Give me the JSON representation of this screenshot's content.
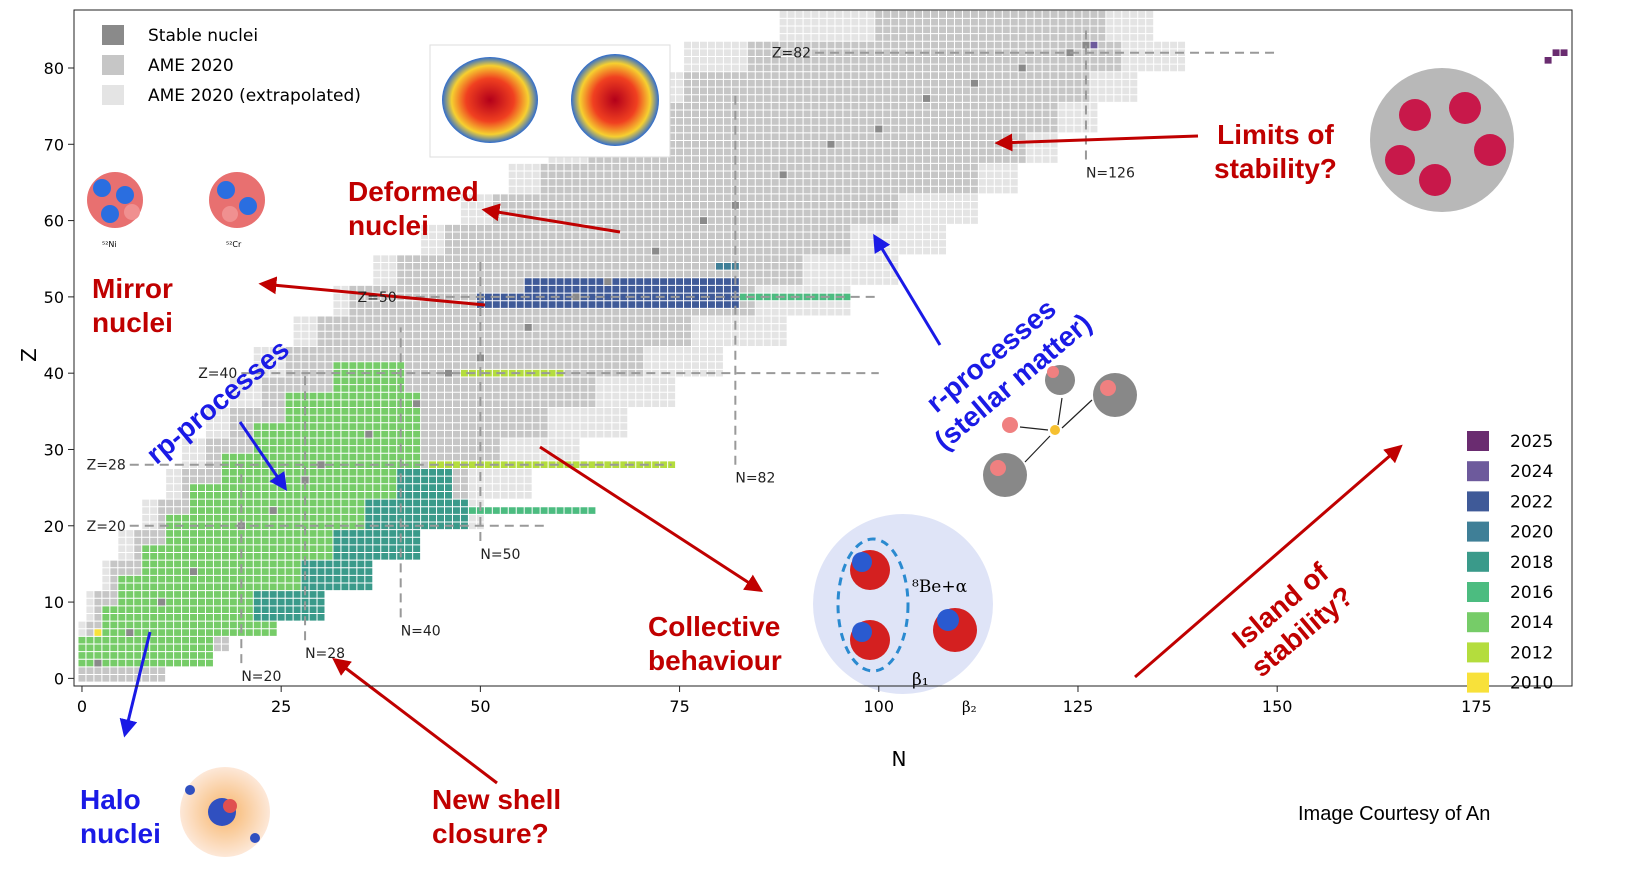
{
  "chart_data": {
    "type": "nuclide-chart",
    "xlabel": "N",
    "ylabel": "Z",
    "xlim": [
      -1,
      187
    ],
    "ylim": [
      -1,
      87.6
    ],
    "xticks": [
      0,
      25,
      50,
      75,
      100,
      125,
      150,
      175
    ],
    "yticks": [
      0,
      10,
      20,
      30,
      40,
      50,
      60,
      70,
      80
    ],
    "series": [
      {
        "name": "Stable nuclei",
        "color": "#8a8a8a",
        "legend": "upper left",
        "x": [
          2,
          6,
          10,
          14,
          20,
          24,
          28,
          30,
          36,
          42,
          46,
          50,
          56,
          62,
          66,
          72,
          78,
          82,
          88,
          94,
          100,
          106,
          112,
          118,
          124,
          126
        ],
        "y": [
          2,
          6,
          10,
          14,
          20,
          22,
          26,
          28,
          32,
          36,
          40,
          42,
          46,
          50,
          52,
          56,
          60,
          62,
          66,
          70,
          72,
          76,
          78,
          80,
          82,
          83
        ]
      },
      {
        "name": "AME 2020",
        "color": "#c6c6c6",
        "legend": "upper left",
        "z": [
          0,
          4,
          8,
          12,
          16,
          20,
          24,
          28,
          32,
          36,
          40,
          44,
          48,
          52,
          56,
          60,
          64,
          68,
          72,
          76,
          80,
          84
        ],
        "n_min": [
          0,
          1,
          2,
          4,
          7,
          10,
          13,
          16,
          19,
          23,
          26,
          30,
          34,
          40,
          46,
          52,
          58,
          64,
          70,
          76,
          84,
          100
        ],
        "n_max": [
          10,
          18,
          26,
          32,
          38,
          44,
          48,
          52,
          58,
          64,
          70,
          76,
          84,
          90,
          96,
          102,
          112,
          118,
          122,
          126,
          130,
          128
        ]
      },
      {
        "name": "AME 2020 (extrapolated)",
        "color": "#e4e4e4",
        "legend": "upper left",
        "z": [
          0,
          4,
          8,
          12,
          16,
          20,
          24,
          28,
          32,
          36,
          40,
          44,
          48,
          52,
          56,
          60,
          64,
          68,
          72,
          76,
          80,
          84
        ],
        "n_min": [
          0,
          0,
          1,
          3,
          5,
          8,
          11,
          13,
          16,
          19,
          22,
          27,
          32,
          37,
          43,
          48,
          54,
          59,
          65,
          70,
          76,
          88
        ],
        "n_max": [
          6,
          14,
          24,
          32,
          40,
          50,
          56,
          62,
          68,
          74,
          80,
          88,
          96,
          102,
          108,
          112,
          117,
          122,
          127,
          132,
          138,
          134
        ]
      },
      {
        "name": "2025",
        "color": "#6a2c70",
        "legend": "center right",
        "z": [
          81,
          82
        ],
        "n_min": [
          184,
          185
        ],
        "n_max": [
          184,
          186
        ]
      },
      {
        "name": "2024",
        "color": "#6d5a9c",
        "legend": "center right",
        "z": [
          83
        ],
        "n_min": [
          126
        ],
        "n_max": [
          127
        ]
      },
      {
        "name": "2022",
        "color": "#3f5a98",
        "legend": "center right",
        "z": [
          49,
          51
        ],
        "n_min": [
          50,
          56
        ],
        "n_max": [
          82,
          82
        ]
      },
      {
        "name": "2020",
        "color": "#3f7f97",
        "legend": "center right",
        "z": [
          54
        ],
        "n_min": [
          80
        ],
        "n_max": [
          82
        ]
      },
      {
        "name": "2018",
        "color": "#3a9a8a",
        "legend": "center right",
        "z": [
          8,
          12,
          16,
          20,
          24
        ],
        "n_min": [
          22,
          28,
          32,
          36,
          40
        ],
        "n_max": [
          30,
          36,
          42,
          48,
          46
        ]
      },
      {
        "name": "2016",
        "color": "#4cbc80",
        "legend": "center right",
        "z": [
          22,
          50
        ],
        "n_min": [
          48,
          82
        ],
        "n_max": [
          64,
          96
        ]
      },
      {
        "name": "2014",
        "color": "#76cc68",
        "legend": "center right",
        "z": [
          2,
          6,
          10,
          14,
          18,
          22,
          26,
          30,
          34,
          38
        ],
        "n_min": [
          0,
          3,
          5,
          8,
          11,
          14,
          18,
          22,
          26,
          32
        ],
        "n_max": [
          16,
          24,
          30,
          34,
          38,
          40,
          42,
          42,
          42,
          40
        ]
      },
      {
        "name": "2012",
        "color": "#b4dd3d",
        "legend": "center right",
        "z": [
          28,
          40
        ],
        "n_min": [
          44,
          48
        ],
        "n_max": [
          74,
          60
        ]
      },
      {
        "name": "2010",
        "color": "#f8e13a",
        "legend": "center right",
        "z": [
          3,
          5,
          7
        ],
        "n_min": [
          3,
          2,
          4
        ],
        "n_max": [
          14,
          12,
          10
        ]
      }
    ],
    "magic_numbers": [
      {
        "label": "Z=82",
        "axis": "z",
        "value": 82,
        "span": [
          92,
          150
        ]
      },
      {
        "label": "N=126",
        "axis": "n",
        "value": 126,
        "span": [
          68,
          85
        ]
      },
      {
        "label": "Z=50",
        "axis": "z",
        "value": 50,
        "span": [
          40,
          100
        ]
      },
      {
        "label": "N=82",
        "axis": "n",
        "value": 82,
        "span": [
          28,
          77
        ]
      },
      {
        "label": "Z=40",
        "axis": "z",
        "value": 40,
        "span": [
          20,
          100
        ]
      },
      {
        "label": "N=50",
        "axis": "n",
        "value": 50,
        "span": [
          18,
          55
        ]
      },
      {
        "label": "Z=28",
        "axis": "z",
        "value": 28,
        "span": [
          6,
          74
        ]
      },
      {
        "label": "N=40",
        "axis": "n",
        "value": 40,
        "span": [
          8,
          46
        ]
      },
      {
        "label": "Z=20",
        "axis": "z",
        "value": 20,
        "span": [
          6,
          58
        ]
      },
      {
        "label": "N=28",
        "axis": "n",
        "value": 28,
        "span": [
          5,
          40
        ]
      },
      {
        "label": "N=20",
        "axis": "n",
        "value": 20,
        "span": [
          2,
          28
        ]
      }
    ],
    "annotations": [
      {
        "lines": [
          "Deformed",
          "nuclei"
        ]
      },
      {
        "lines": [
          "Mirror",
          "nuclei"
        ]
      },
      {
        "lines": [
          "Limits of",
          "stability?"
        ]
      },
      {
        "lines": [
          "Collective",
          "behaviour"
        ]
      },
      {
        "lines": [
          "New shell",
          "closure?"
        ]
      },
      {
        "lines": [
          "Halo",
          "nuclei"
        ]
      },
      {
        "lines": [
          "rp-processes"
        ]
      },
      {
        "lines": [
          "r-processes",
          "(stellar matter)"
        ]
      },
      {
        "lines": [
          "Island of",
          "stability?"
        ]
      }
    ],
    "inset_labels": [
      "⁸Be+α",
      "β₁",
      "β₂",
      "⁵²Ni",
      "⁵²Cr"
    ],
    "credit": "Image Courtesy of An"
  }
}
